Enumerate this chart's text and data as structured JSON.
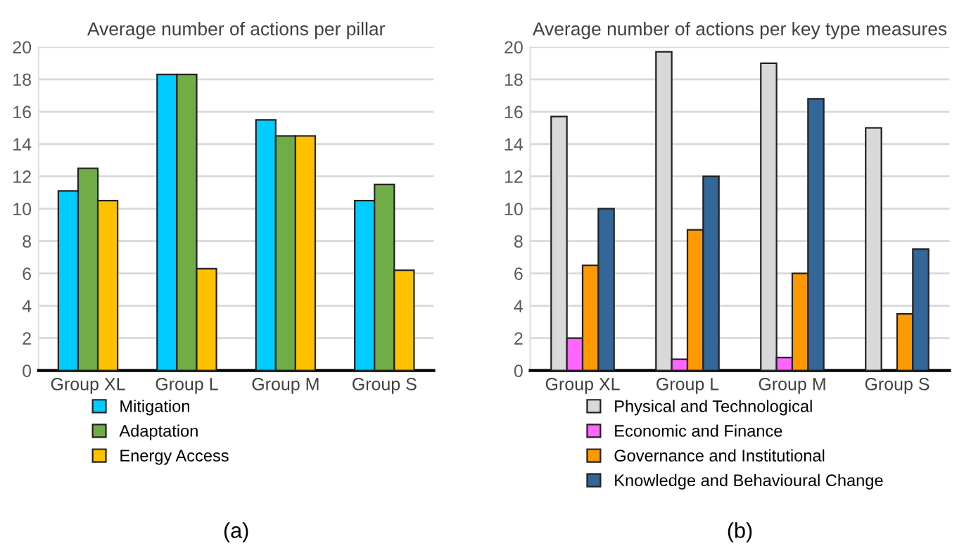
{
  "chart_data": [
    {
      "type": "bar",
      "title": "Average number of actions per pillar",
      "categories": [
        "Group XL",
        "Group L",
        "Group M",
        "Group S"
      ],
      "series": [
        {
          "name": "Mitigation",
          "color": "#00ccff",
          "values": [
            11.1,
            18.3,
            15.5,
            10.5
          ]
        },
        {
          "name": "Adaptation",
          "color": "#70ad47",
          "values": [
            12.5,
            18.3,
            14.5,
            11.5
          ]
        },
        {
          "name": "Energy Access",
          "color": "#ffc000",
          "values": [
            10.5,
            6.3,
            14.5,
            6.2
          ]
        }
      ],
      "ylim": [
        0,
        20
      ],
      "yticks": [
        0,
        2,
        4,
        6,
        8,
        10,
        12,
        14,
        16,
        18,
        20
      ],
      "grid": "y",
      "legend": "bottom",
      "annotations": [
        "(a)"
      ]
    },
    {
      "type": "bar",
      "title": "Average number of actions per key type measures",
      "categories": [
        "Group XL",
        "Group L",
        "Group M",
        "Group S"
      ],
      "series": [
        {
          "name": "Physical and Technological",
          "color": "#d9d9d9",
          "values": [
            15.7,
            19.7,
            19.0,
            15.0
          ]
        },
        {
          "name": "Economic and Finance",
          "color": "#ff66ff",
          "values": [
            2.0,
            0.7,
            0.8,
            null
          ]
        },
        {
          "name": "Governance and Institutional",
          "color": "#ff9900",
          "values": [
            6.5,
            8.7,
            6.0,
            3.5
          ]
        },
        {
          "name": "Knowledge and Behavioural Change",
          "color": "#336699",
          "values": [
            10.0,
            12.0,
            16.8,
            7.5
          ]
        }
      ],
      "ylim": [
        0,
        20
      ],
      "yticks": [
        0,
        2,
        4,
        6,
        8,
        10,
        12,
        14,
        16,
        18,
        20
      ],
      "grid": "y",
      "legend": "bottom",
      "annotations": [
        "(b)"
      ]
    }
  ]
}
